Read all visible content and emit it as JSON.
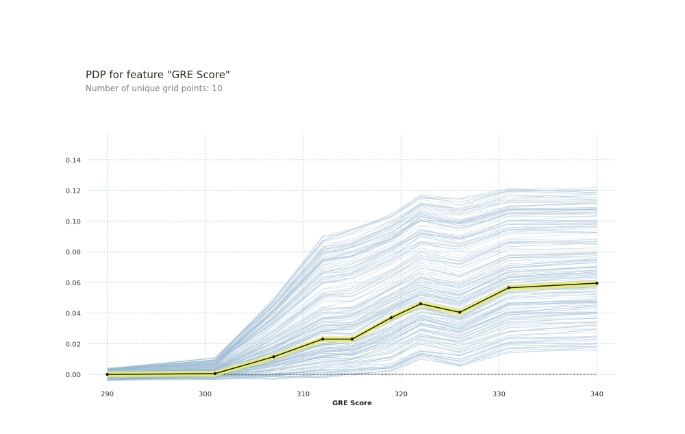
{
  "chart_data": {
    "type": "line",
    "title": "PDP for feature \"GRE Score\"",
    "subtitle": "Number of unique grid points: 10",
    "xlabel": "GRE Score",
    "ylabel": "",
    "xlim": [
      288,
      342
    ],
    "ylim": [
      -0.004,
      0.157
    ],
    "x_ticks": [
      290,
      300,
      310,
      320,
      330,
      340
    ],
    "x_tick_labels": [
      "290",
      "300",
      "310",
      "320",
      "330",
      "340"
    ],
    "y_ticks": [
      0.0,
      0.02,
      0.04,
      0.06,
      0.08,
      0.1,
      0.12,
      0.14
    ],
    "y_tick_labels": [
      "0.00",
      "0.02",
      "0.04",
      "0.06",
      "0.08",
      "0.10",
      "0.12",
      "0.14"
    ],
    "grid": true,
    "series": [
      {
        "x": [
          290,
          301,
          307,
          312,
          315,
          319,
          322,
          326,
          331,
          340
        ],
        "values": [
          0.0,
          0.0005,
          0.0115,
          0.023,
          0.023,
          0.037,
          0.046,
          0.0405,
          0.0565,
          0.0595
        ]
      }
    ],
    "ice_lines": {
      "count": 200,
      "upper_band": [
        0.004,
        0.01,
        0.05,
        0.09,
        0.095,
        0.105,
        0.118,
        0.115,
        0.122,
        0.122
      ],
      "lower_band": [
        -0.004,
        -0.002,
        -0.003,
        -0.002,
        -0.001,
        0.0,
        0.01,
        0.005,
        0.015,
        0.016
      ]
    },
    "colors": {
      "pdp_line": "#1a1a1a",
      "pdp_band": "#e9ed6a",
      "ice_lines": "#9ab9d4",
      "grid": "#a7c3cf",
      "zero_line": "#333333"
    }
  }
}
